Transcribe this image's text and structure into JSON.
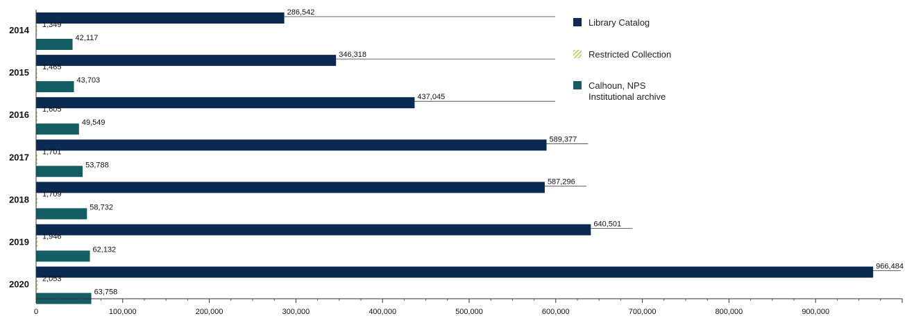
{
  "chart_data": {
    "type": "bar",
    "orientation": "horizontal",
    "categories": [
      "2014",
      "2015",
      "2016",
      "2017",
      "2018",
      "2019",
      "2020"
    ],
    "series": [
      {
        "name": "Library Catalog",
        "values": [
          286542,
          346318,
          437045,
          589377,
          587296,
          640501,
          966484
        ],
        "labels": [
          "286,542",
          "346,318",
          "437,045",
          "589,377",
          "587,296",
          "640,501",
          "966,484"
        ],
        "color": "#0b2a52",
        "pattern": "solid"
      },
      {
        "name": "Restricted Collection",
        "values": [
          1349,
          1465,
          1605,
          1701,
          1709,
          1946,
          2053
        ],
        "labels": [
          "1,349",
          "1,465",
          "1,605",
          "1,701",
          "1,709",
          "1,946",
          "2,053"
        ],
        "color": "#b7c46a",
        "pattern": "hatched"
      },
      {
        "name": "Calhoun, NPS Institutional archive",
        "legend_lines": [
          "Calhoun, NPS",
          "Institutional archive"
        ],
        "values": [
          42117,
          43703,
          49549,
          53788,
          58732,
          62132,
          63758
        ],
        "labels": [
          "42,117",
          "43,703",
          "49,549",
          "53,788",
          "58,732",
          "62,132",
          "63,758"
        ],
        "color": "#145d63",
        "pattern": "solid"
      }
    ],
    "xlim": [
      0,
      1000000
    ],
    "x_ticks": [
      "0",
      "100,000",
      "200,000",
      "300,000",
      "400,000",
      "500,000",
      "600,000",
      "700,000",
      "800,000",
      "900,000"
    ],
    "x_tick_values": [
      0,
      100000,
      200000,
      300000,
      400000,
      500000,
      600000,
      700000,
      800000,
      900000
    ],
    "grid": false,
    "legend_position": "top-right"
  }
}
